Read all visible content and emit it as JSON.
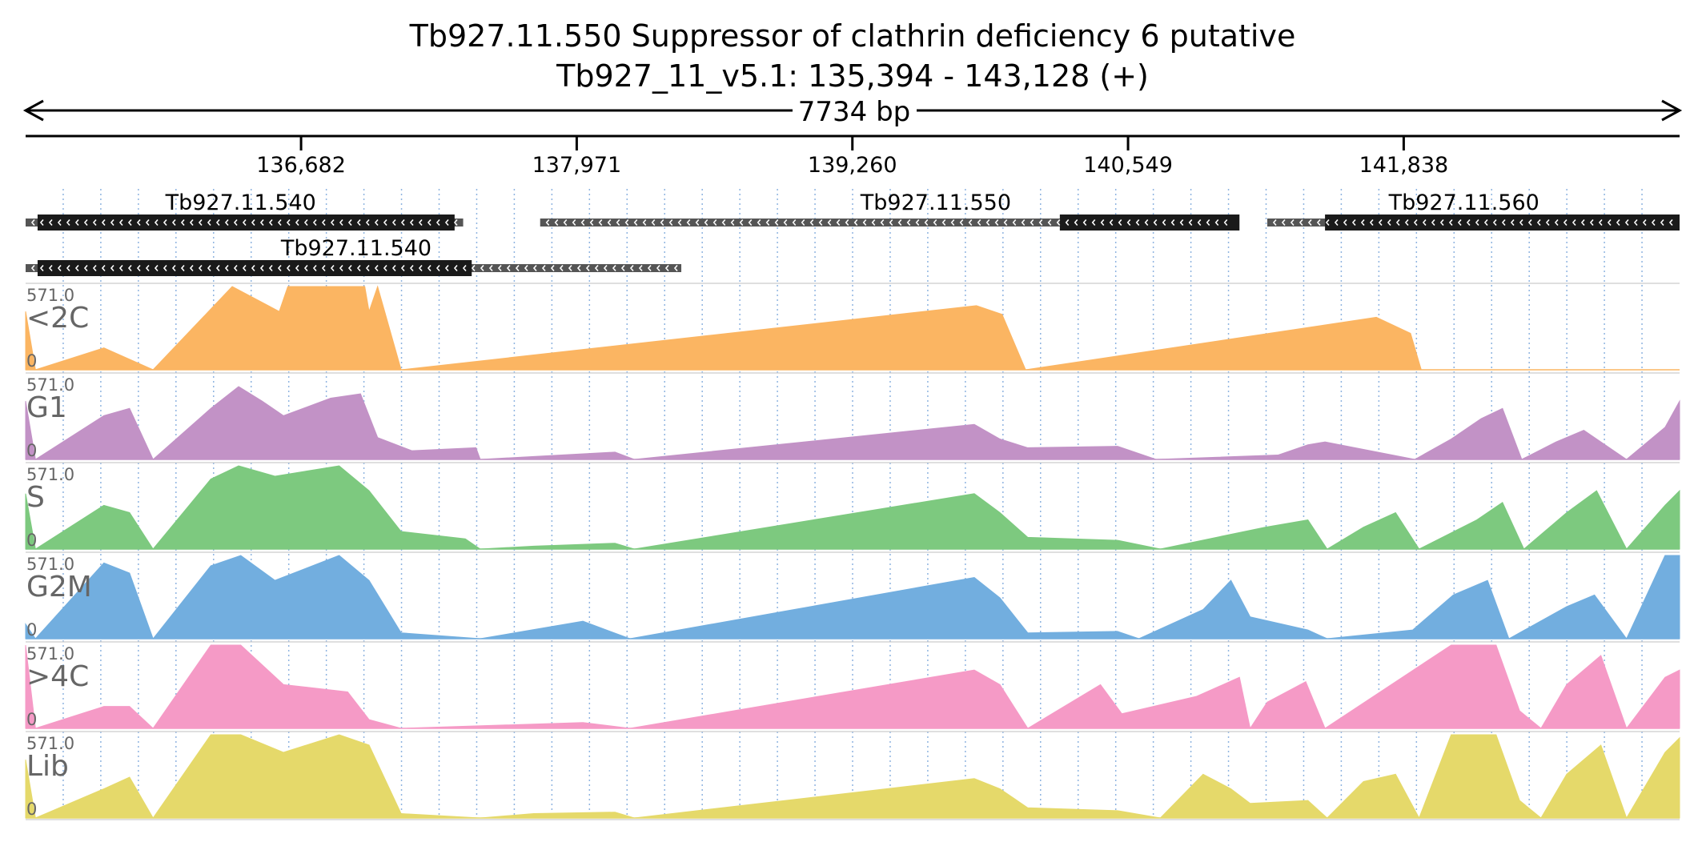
{
  "header": {
    "title": "Tb927.11.550  Suppressor of clathrin deficiency 6  putative",
    "locus": "Tb927_11_v5.1: 135,394 - 143,128 (+)",
    "span_label": "7734 bp"
  },
  "axis": {
    "start": 135394,
    "end": 143128,
    "ticks": [
      {
        "pos": 136682,
        "label": "136,682"
      },
      {
        "pos": 137971,
        "label": "137,971"
      },
      {
        "pos": 139260,
        "label": "139,260"
      },
      {
        "pos": 140549,
        "label": "140,549"
      },
      {
        "pos": 141838,
        "label": "141,838"
      }
    ]
  },
  "genes": [
    {
      "label": "Tb927.11.540",
      "row": 0,
      "start": 135394,
      "end": 137440,
      "cds_start": 135450,
      "cds_end": 137400,
      "label_pos": 136400
    },
    {
      "label": "Tb927.11.550",
      "row": 0,
      "start": 137800,
      "end": 141050,
      "cds_start": 140230,
      "cds_end": 141070,
      "label_pos": 139650
    },
    {
      "label": "Tb927.11.560",
      "row": 0,
      "start": 141200,
      "end": 143128,
      "cds_start": 141470,
      "cds_end": 143128,
      "label_pos": 142120
    },
    {
      "label": "Tb927.11.540",
      "row": 1,
      "start": 135394,
      "end": 138460,
      "cds_start": 135450,
      "cds_end": 137480,
      "label_pos": 136940
    }
  ],
  "tracks": [
    {
      "name": "<2C",
      "max_label": "571.0",
      "zero_label": "0",
      "color": "#FBB562",
      "max": 571.0,
      "profile": [
        [
          135394,
          400
        ],
        [
          135440,
          0
        ],
        [
          135760,
          150
        ],
        [
          135990,
          0
        ],
        [
          136360,
          571
        ],
        [
          136580,
          400
        ],
        [
          136620,
          571
        ],
        [
          136980,
          571
        ],
        [
          137000,
          400
        ],
        [
          137040,
          571
        ],
        [
          137150,
          0
        ],
        [
          139840,
          440
        ],
        [
          139960,
          380
        ],
        [
          140070,
          0
        ],
        [
          141710,
          360
        ],
        [
          141870,
          250
        ],
        [
          141920,
          0
        ]
      ]
    },
    {
      "name": "G1",
      "max_label": "571.0",
      "zero_label": "0",
      "color": "#C292C6",
      "max": 571.0,
      "profile": [
        [
          135394,
          400
        ],
        [
          135440,
          0
        ],
        [
          135760,
          300
        ],
        [
          135880,
          350
        ],
        [
          135990,
          0
        ],
        [
          136260,
          350
        ],
        [
          136390,
          500
        ],
        [
          136500,
          400
        ],
        [
          136600,
          300
        ],
        [
          136820,
          420
        ],
        [
          136960,
          450
        ],
        [
          137040,
          150
        ],
        [
          137200,
          60
        ],
        [
          137500,
          80
        ],
        [
          137520,
          0
        ],
        [
          137770,
          20
        ],
        [
          138150,
          50
        ],
        [
          138240,
          0
        ],
        [
          139830,
          240
        ],
        [
          139950,
          140
        ],
        [
          140080,
          80
        ],
        [
          140500,
          90
        ],
        [
          140680,
          0
        ],
        [
          141250,
          30
        ],
        [
          141390,
          100
        ],
        [
          141470,
          120
        ],
        [
          141890,
          0
        ],
        [
          142060,
          140
        ],
        [
          142200,
          280
        ],
        [
          142300,
          350
        ],
        [
          142390,
          0
        ],
        [
          142550,
          120
        ],
        [
          142680,
          200
        ],
        [
          142880,
          0
        ],
        [
          143060,
          220
        ],
        [
          143128,
          400
        ]
      ]
    },
    {
      "name": "S",
      "max_label": "571.0",
      "zero_label": "0",
      "color": "#7DC97F",
      "max": 571.0,
      "profile": [
        [
          135394,
          380
        ],
        [
          135440,
          0
        ],
        [
          135760,
          300
        ],
        [
          135880,
          250
        ],
        [
          135990,
          0
        ],
        [
          136260,
          480
        ],
        [
          136390,
          571
        ],
        [
          136560,
          500
        ],
        [
          136860,
          571
        ],
        [
          137000,
          400
        ],
        [
          137150,
          120
        ],
        [
          137450,
          70
        ],
        [
          137520,
          0
        ],
        [
          137770,
          20
        ],
        [
          138150,
          40
        ],
        [
          138240,
          0
        ],
        [
          139830,
          380
        ],
        [
          139950,
          250
        ],
        [
          140080,
          80
        ],
        [
          140500,
          60
        ],
        [
          140700,
          0
        ],
        [
          141190,
          150
        ],
        [
          141390,
          200
        ],
        [
          141480,
          0
        ],
        [
          141650,
          150
        ],
        [
          141800,
          250
        ],
        [
          141910,
          0
        ],
        [
          142180,
          200
        ],
        [
          142300,
          320
        ],
        [
          142400,
          0
        ],
        [
          142600,
          250
        ],
        [
          142740,
          400
        ],
        [
          142880,
          0
        ],
        [
          143060,
          300
        ],
        [
          143128,
          400
        ]
      ]
    },
    {
      "name": "G2M",
      "max_label": "571.0",
      "zero_label": "0",
      "color": "#72AEDF",
      "max": 571.0,
      "profile": [
        [
          135394,
          100
        ],
        [
          135440,
          0
        ],
        [
          135760,
          520
        ],
        [
          135880,
          450
        ],
        [
          135990,
          0
        ],
        [
          136260,
          500
        ],
        [
          136400,
          571
        ],
        [
          136560,
          400
        ],
        [
          136860,
          571
        ],
        [
          137000,
          400
        ],
        [
          137150,
          40
        ],
        [
          137520,
          0
        ],
        [
          138000,
          120
        ],
        [
          138220,
          0
        ],
        [
          139830,
          420
        ],
        [
          139950,
          280
        ],
        [
          140080,
          40
        ],
        [
          140500,
          50
        ],
        [
          140600,
          0
        ],
        [
          140900,
          200
        ],
        [
          141030,
          400
        ],
        [
          141120,
          150
        ],
        [
          141390,
          60
        ],
        [
          141480,
          0
        ],
        [
          141880,
          60
        ],
        [
          142070,
          300
        ],
        [
          142230,
          400
        ],
        [
          142330,
          0
        ],
        [
          142600,
          220
        ],
        [
          142730,
          300
        ],
        [
          142880,
          0
        ],
        [
          143060,
          571
        ],
        [
          143128,
          571
        ]
      ]
    },
    {
      "name": ">4C",
      "max_label": "571.0",
      "zero_label": "0",
      "color": "#F59AC6",
      "max": 571.0,
      "profile": [
        [
          135394,
          571
        ],
        [
          135440,
          0
        ],
        [
          135760,
          150
        ],
        [
          135880,
          150
        ],
        [
          135990,
          0
        ],
        [
          136260,
          571
        ],
        [
          136400,
          571
        ],
        [
          136600,
          300
        ],
        [
          136900,
          250
        ],
        [
          137000,
          60
        ],
        [
          137150,
          0
        ],
        [
          138000,
          40
        ],
        [
          138220,
          0
        ],
        [
          139830,
          400
        ],
        [
          139950,
          300
        ],
        [
          140080,
          0
        ],
        [
          140420,
          300
        ],
        [
          140520,
          100
        ],
        [
          140870,
          220
        ],
        [
          141070,
          350
        ],
        [
          141120,
          0
        ],
        [
          141200,
          180
        ],
        [
          141380,
          320
        ],
        [
          141470,
          0
        ],
        [
          142060,
          571
        ],
        [
          142270,
          571
        ],
        [
          142380,
          120
        ],
        [
          142480,
          0
        ],
        [
          142600,
          300
        ],
        [
          142760,
          500
        ],
        [
          142880,
          0
        ],
        [
          143060,
          350
        ],
        [
          143128,
          400
        ]
      ]
    },
    {
      "name": "Lib",
      "max_label": "571.0",
      "zero_label": "0",
      "color": "#E5D96A",
      "max": 571.0,
      "profile": [
        [
          135394,
          400
        ],
        [
          135440,
          0
        ],
        [
          135760,
          200
        ],
        [
          135880,
          280
        ],
        [
          135990,
          0
        ],
        [
          136260,
          571
        ],
        [
          136400,
          571
        ],
        [
          136600,
          450
        ],
        [
          136860,
          571
        ],
        [
          137000,
          500
        ],
        [
          137150,
          30
        ],
        [
          137520,
          0
        ],
        [
          137770,
          30
        ],
        [
          138150,
          40
        ],
        [
          138240,
          0
        ],
        [
          139830,
          270
        ],
        [
          139950,
          200
        ],
        [
          140080,
          70
        ],
        [
          140500,
          50
        ],
        [
          140700,
          0
        ],
        [
          140900,
          300
        ],
        [
          141030,
          200
        ],
        [
          141120,
          100
        ],
        [
          141390,
          120
        ],
        [
          141480,
          0
        ],
        [
          141650,
          250
        ],
        [
          141800,
          300
        ],
        [
          141910,
          0
        ],
        [
          142060,
          571
        ],
        [
          142270,
          571
        ],
        [
          142380,
          120
        ],
        [
          142480,
          0
        ],
        [
          142600,
          300
        ],
        [
          142760,
          500
        ],
        [
          142880,
          0
        ],
        [
          143060,
          450
        ],
        [
          143128,
          550
        ]
      ]
    }
  ],
  "colors": {
    "text": "#000000",
    "track_label": "#666666",
    "gene_cds": "#1a1a1a",
    "gene_utr": "#555555",
    "grid_line": "#8fb4e0",
    "clip_mark": "#cc2222"
  }
}
